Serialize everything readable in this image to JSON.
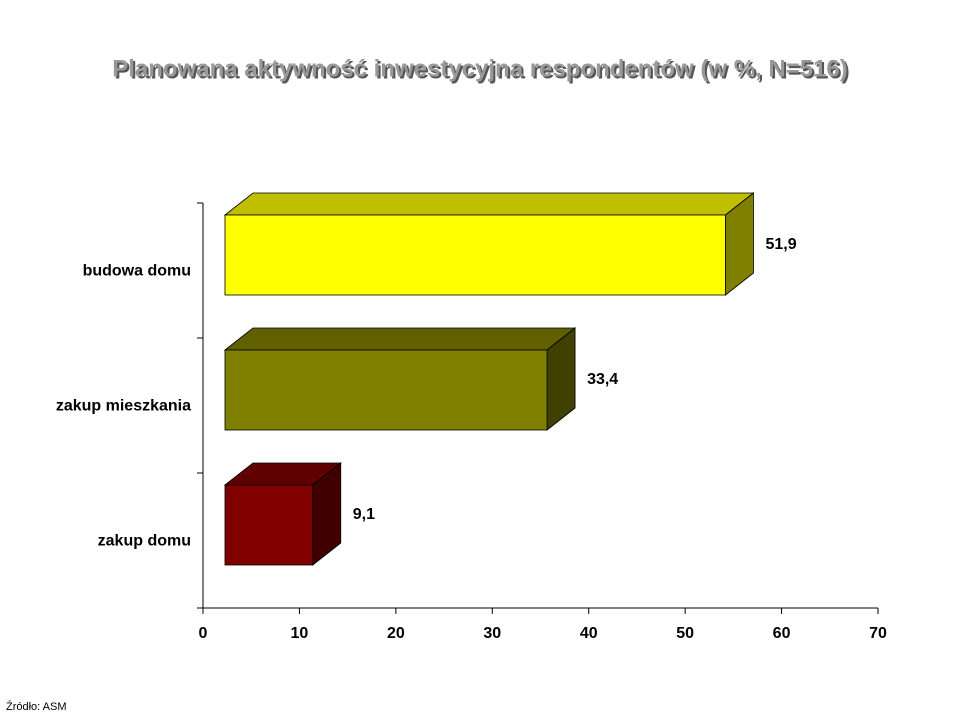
{
  "chart_data": {
    "type": "bar3d",
    "title": "Planowana aktywność inwestycyjna respondentów (w %, N=516)",
    "categories": [
      "budowa domu",
      "zakup mieszkania",
      "zakup domu"
    ],
    "values": [
      51.9,
      33.4,
      9.1
    ],
    "value_labels": [
      "51,9",
      "33,4",
      "9,1"
    ],
    "colors": [
      "#ffff00",
      "#808000",
      "#800000"
    ],
    "xlim": [
      0,
      70
    ],
    "xticks": [
      0,
      10,
      20,
      30,
      40,
      50,
      60,
      70
    ],
    "source": "Źródło: ASM"
  }
}
